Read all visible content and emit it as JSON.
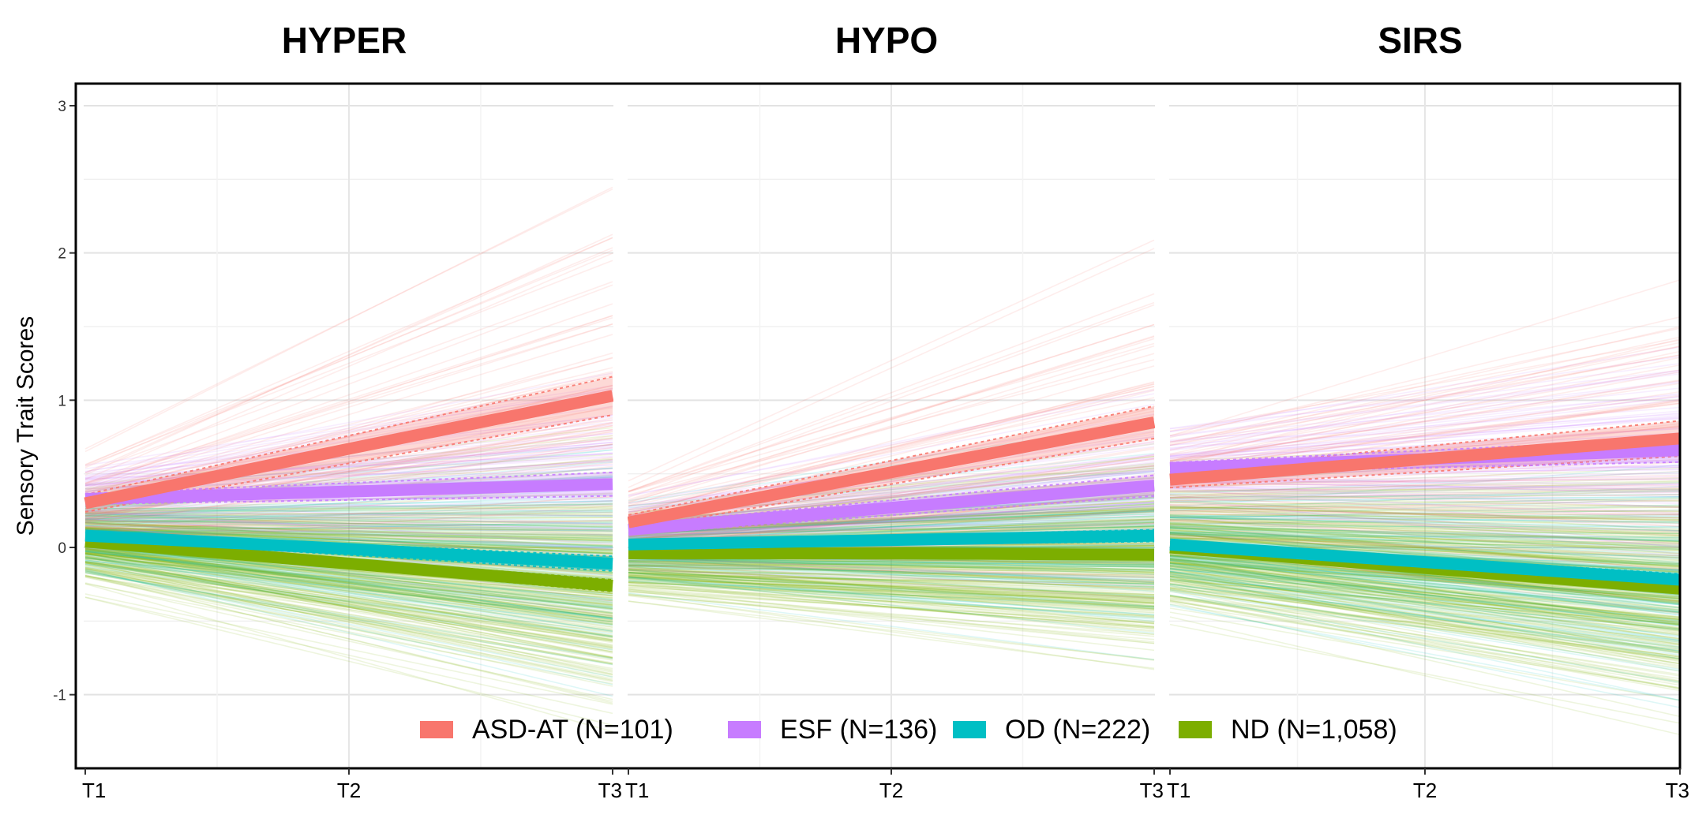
{
  "chart_data": {
    "type": "line",
    "ylabel": "Sensory Trait Scores",
    "ylim": [
      -1.5,
      3.15
    ],
    "yticks": [
      "3",
      "2",
      "1",
      "0",
      "-1"
    ],
    "ytick_values": [
      3,
      2,
      1,
      0,
      -1
    ],
    "x": [
      "T1",
      "T2",
      "T3"
    ],
    "grid": true,
    "legend_position": "bottom-center",
    "groups": [
      {
        "name": "ASD-AT (N=101)",
        "color": "#F8766D"
      },
      {
        "name": "ESF (N=136)",
        "color": "#C77CFF"
      },
      {
        "name": "OD (N=222)",
        "color": "#00BFC4"
      },
      {
        "name": "ND (N=1,058)",
        "color": "#7CAE00"
      }
    ],
    "facets": [
      {
        "title": "HYPER",
        "series": [
          {
            "name": "ASD-AT (N=101)",
            "values": [
              0.3,
              0.67,
              1.03
            ],
            "band": 0.13
          },
          {
            "name": "ESF (N=136)",
            "values": [
              0.33,
              0.38,
              0.43
            ],
            "band": 0.08
          },
          {
            "name": "OD (N=222)",
            "values": [
              0.08,
              -0.01,
              -0.11
            ],
            "band": 0.05
          },
          {
            "name": "ND (N=1,058)",
            "values": [
              0.04,
              -0.11,
              -0.26
            ],
            "band": 0.04
          }
        ],
        "spread": {
          "ASD-AT (N=101)": [
            0.25,
            0.9
          ],
          "ESF (N=136)": [
            0.2,
            0.6
          ],
          "OD (N=222)": [
            0.2,
            0.55
          ],
          "ND (N=1,058)": [
            0.22,
            0.55
          ]
        }
      },
      {
        "title": "HYPO",
        "series": [
          {
            "name": "ASD-AT (N=101)",
            "values": [
              0.17,
              0.51,
              0.85
            ],
            "band": 0.11
          },
          {
            "name": "ESF (N=136)",
            "values": [
              0.12,
              0.27,
              0.42
            ],
            "band": 0.07
          },
          {
            "name": "OD (N=222)",
            "values": [
              0.02,
              0.05,
              0.08
            ],
            "band": 0.04
          },
          {
            "name": "ND (N=1,058)",
            "values": [
              -0.04,
              -0.04,
              -0.05
            ],
            "band": 0.03
          }
        ],
        "spread": {
          "ASD-AT (N=101)": [
            0.2,
            0.7
          ],
          "ESF (N=136)": [
            0.18,
            0.45
          ],
          "OD (N=222)": [
            0.18,
            0.4
          ],
          "ND (N=1,058)": [
            0.2,
            0.42
          ]
        }
      },
      {
        "title": "SIRS",
        "series": [
          {
            "name": "ASD-AT (N=101)",
            "values": [
              0.46,
              0.6,
              0.74
            ],
            "band": 0.12
          },
          {
            "name": "ESF (N=136)",
            "values": [
              0.54,
              0.6,
              0.66
            ],
            "band": 0.08
          },
          {
            "name": "OD (N=222)",
            "values": [
              0.02,
              -0.1,
              -0.22
            ],
            "band": 0.04
          },
          {
            "name": "ND (N=1,058)",
            "values": [
              0.0,
              -0.14,
              -0.28
            ],
            "band": 0.03
          }
        ],
        "spread": {
          "ASD-AT (N=101)": [
            0.3,
            0.75
          ],
          "ESF (N=136)": [
            0.22,
            0.55
          ],
          "OD (N=222)": [
            0.25,
            0.5
          ],
          "ND (N=1,058)": [
            0.3,
            0.5
          ]
        }
      }
    ]
  }
}
